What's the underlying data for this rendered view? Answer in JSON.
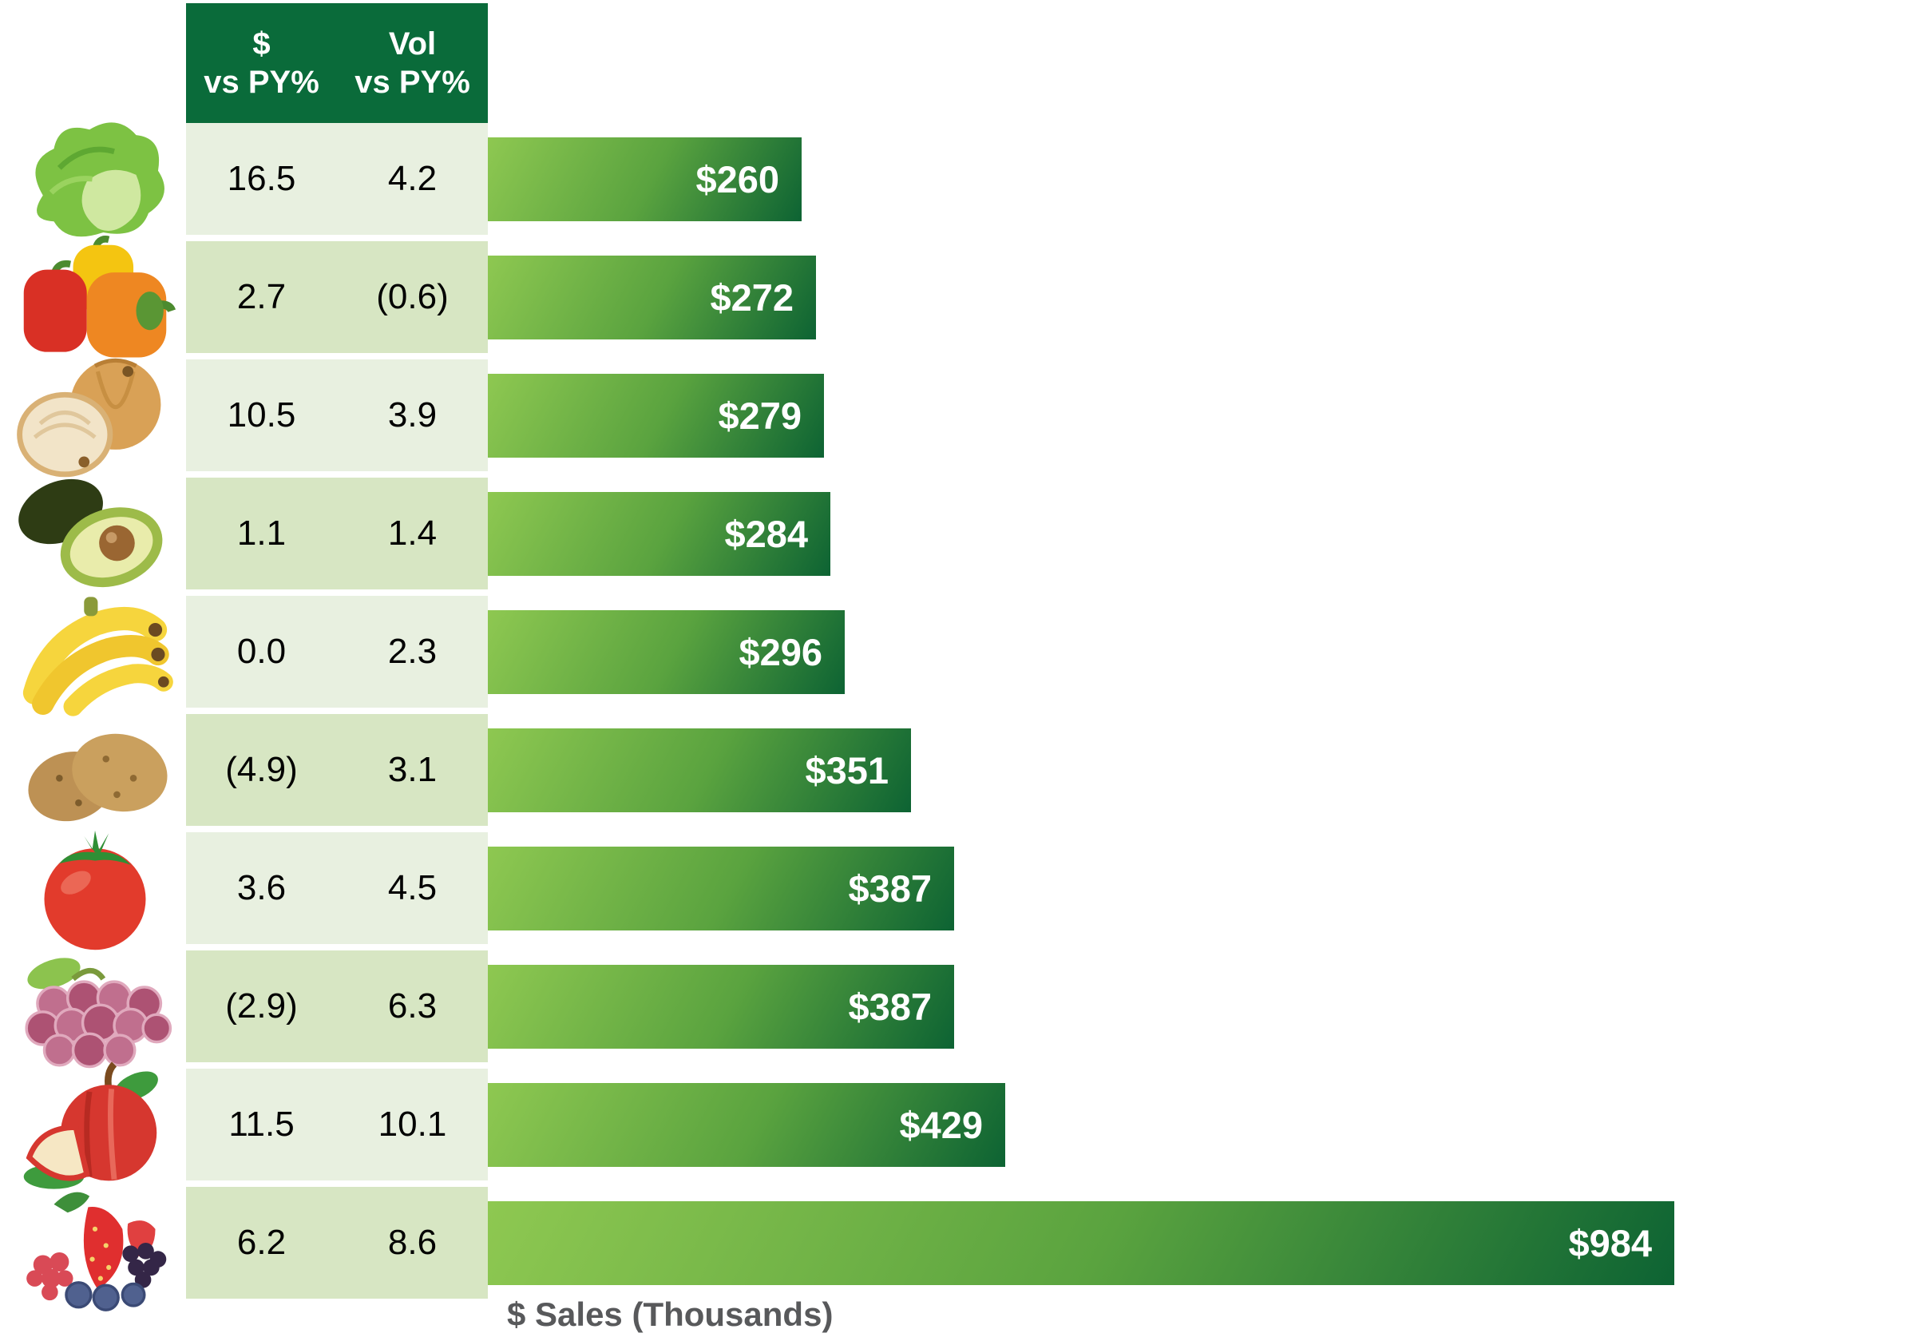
{
  "colors": {
    "header_green": "#0a6b3a",
    "row_light": "#e8f0e0",
    "row_dark": "#d7e6c3",
    "bar_gradient_light": "#8ec851",
    "bar_gradient_dark": "#0d6333",
    "bar_label_white": "#ffffff",
    "axis_gray": "#58595b"
  },
  "table": {
    "header": {
      "col1": [
        "$",
        "vs PY%"
      ],
      "col2": [
        "Vol",
        "vs PY%"
      ]
    },
    "rows": [
      {
        "icon": "lettuce-icon",
        "dollar_vs_py": "16.5",
        "vol_vs_py": "4.2",
        "sales": "$260"
      },
      {
        "icon": "bell-peppers-icon",
        "dollar_vs_py": "2.7",
        "vol_vs_py": "(0.6)",
        "sales": "$272"
      },
      {
        "icon": "onion-icon",
        "dollar_vs_py": "10.5",
        "vol_vs_py": "3.9",
        "sales": "$279"
      },
      {
        "icon": "avocado-icon",
        "dollar_vs_py": "1.1",
        "vol_vs_py": "1.4",
        "sales": "$284"
      },
      {
        "icon": "bananas-icon",
        "dollar_vs_py": "0.0",
        "vol_vs_py": "2.3",
        "sales": "$296"
      },
      {
        "icon": "potatoes-icon",
        "dollar_vs_py": "(4.9)",
        "vol_vs_py": "3.1",
        "sales": "$351"
      },
      {
        "icon": "tomato-icon",
        "dollar_vs_py": "3.6",
        "vol_vs_py": "4.5",
        "sales": "$387"
      },
      {
        "icon": "grapes-icon",
        "dollar_vs_py": "(2.9)",
        "vol_vs_py": "6.3",
        "sales": "$387"
      },
      {
        "icon": "apple-icon",
        "dollar_vs_py": "11.5",
        "vol_vs_py": "10.1",
        "sales": "$429"
      },
      {
        "icon": "berries-icon",
        "dollar_vs_py": "6.2",
        "vol_vs_py": "8.6",
        "sales": "$984"
      }
    ]
  },
  "chart_data": {
    "type": "bar",
    "orientation": "horizontal",
    "categories": [
      "lettuce",
      "bell-peppers",
      "onion",
      "avocado",
      "bananas",
      "potatoes",
      "tomato",
      "grapes",
      "apple",
      "berries"
    ],
    "series": [
      {
        "name": "$ Sales (Thousands)",
        "values": [
          260,
          272,
          279,
          284,
          296,
          351,
          387,
          387,
          429,
          984
        ]
      },
      {
        "name": "$ vs PY%",
        "values": [
          16.5,
          2.7,
          10.5,
          1.1,
          0.0,
          -4.9,
          3.6,
          -2.9,
          11.5,
          6.2
        ]
      },
      {
        "name": "Vol vs PY%",
        "values": [
          4.2,
          -0.6,
          3.9,
          1.4,
          2.3,
          3.1,
          4.5,
          6.3,
          10.1,
          8.6
        ]
      }
    ],
    "bar_labels": [
      "$260",
      "$272",
      "$279",
      "$284",
      "$296",
      "$351",
      "$387",
      "$387",
      "$429",
      "$984"
    ],
    "title": "",
    "xlabel": "$ Sales (Thousands)",
    "ylabel": "",
    "xlim": [
      0,
      1000
    ],
    "grid": false,
    "legend": false,
    "negative_format": "parentheses",
    "bar_color_gradient": [
      "#8ec851",
      "#0d6333"
    ]
  }
}
